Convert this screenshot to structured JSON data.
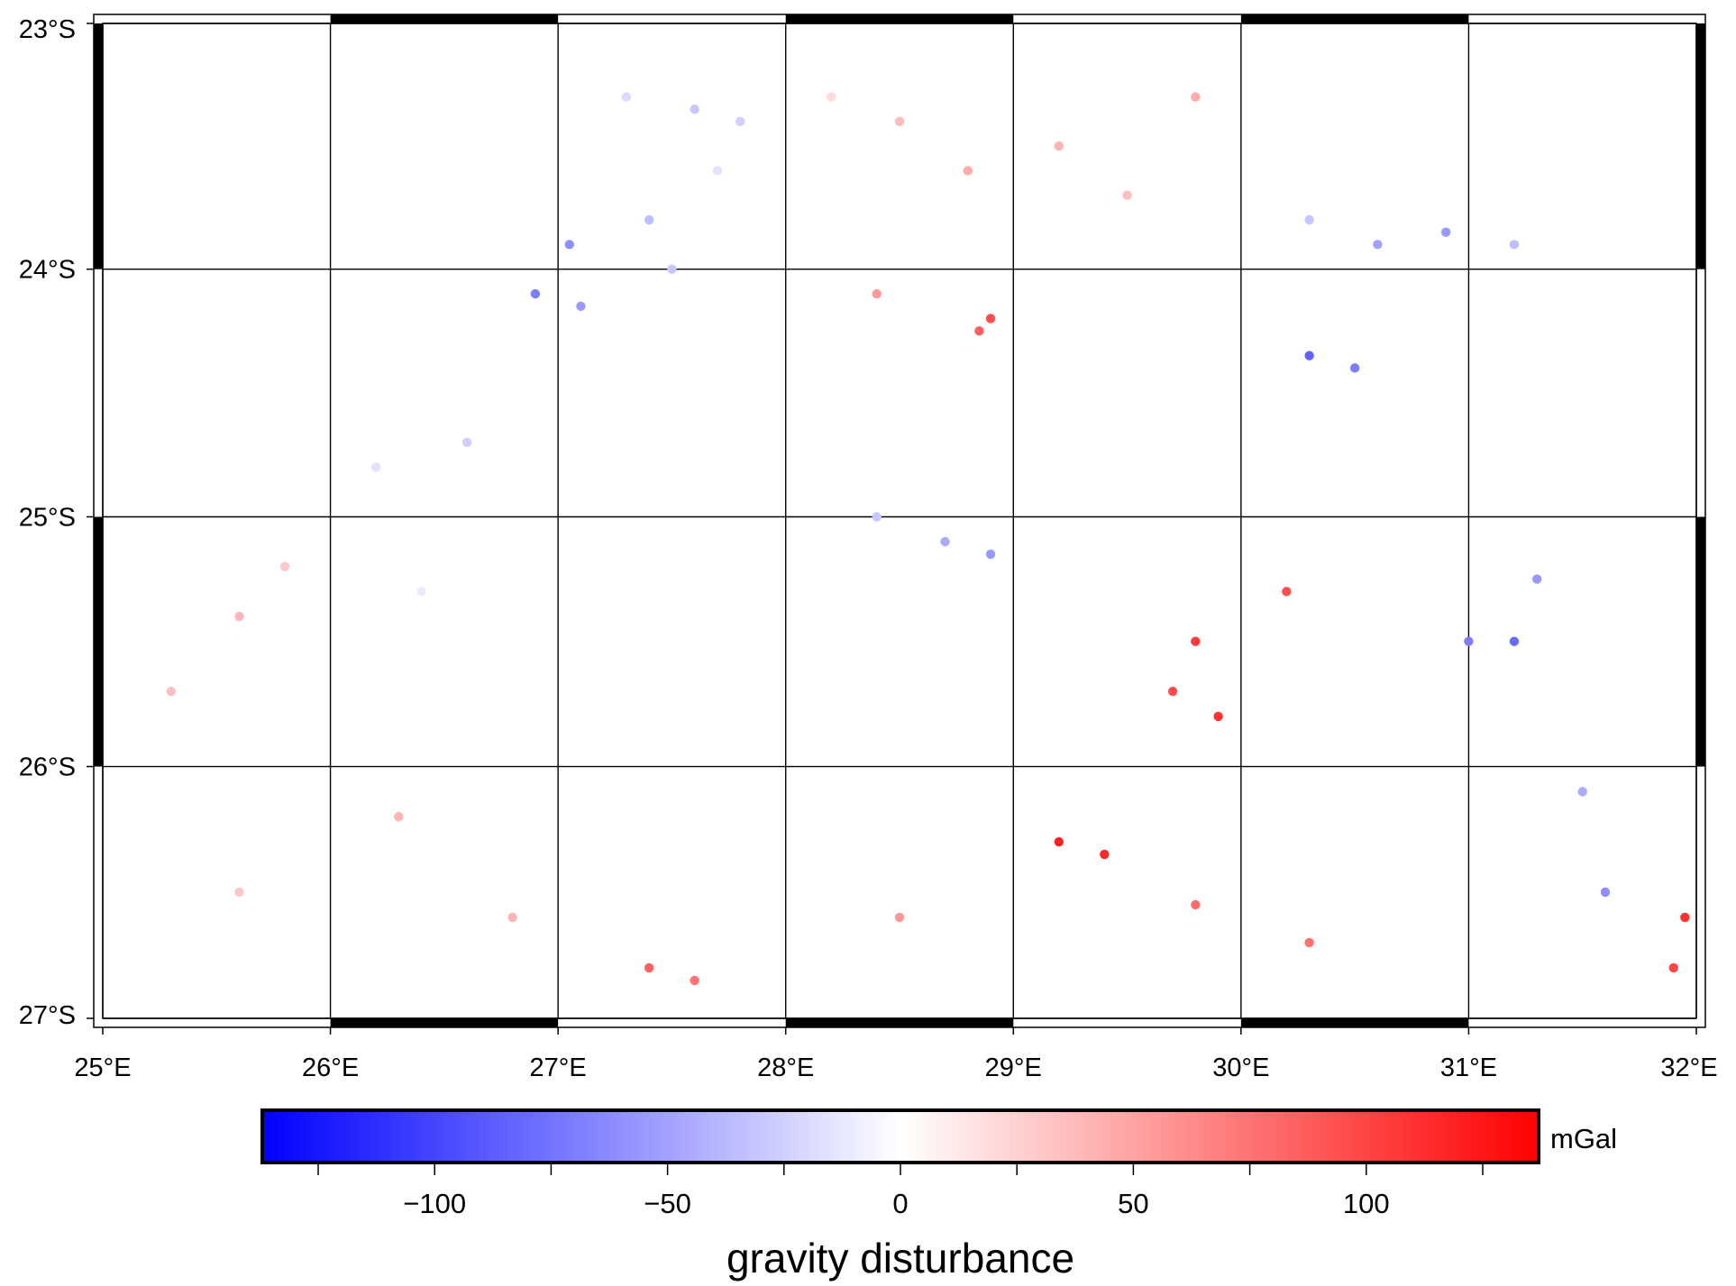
{
  "map": {
    "title": "",
    "projection": "mercator",
    "region": {
      "lon_min": 25,
      "lon_max": 32,
      "lat_min": -27,
      "lat_max": -23
    },
    "x_ticks": [
      {
        "value": 25,
        "label": "25°E"
      },
      {
        "value": 26,
        "label": "26°E"
      },
      {
        "value": 27,
        "label": "27°E"
      },
      {
        "value": 28,
        "label": "28°E"
      },
      {
        "value": 29,
        "label": "29°E"
      },
      {
        "value": 30,
        "label": "30°E"
      },
      {
        "value": 31,
        "label": "31°E"
      },
      {
        "value": 32,
        "label": "32°E"
      }
    ],
    "y_ticks": [
      {
        "value": -23,
        "label": "23°S"
      },
      {
        "value": -24,
        "label": "24°S"
      },
      {
        "value": -25,
        "label": "25°S"
      },
      {
        "value": -26,
        "label": "26°S"
      },
      {
        "value": -27,
        "label": "27°S"
      }
    ],
    "gridlines": true,
    "frame_style": "fancy"
  },
  "colorbar": {
    "label": "gravity disturbance",
    "unit": "mGal",
    "range": [
      -137,
      137
    ],
    "colormap": "polar",
    "color_low": "#0000ff",
    "color_mid": "#ffffff",
    "color_high": "#ff0000",
    "ticks": [
      {
        "value": -100,
        "label": "−100"
      },
      {
        "value": -50,
        "label": "−50"
      },
      {
        "value": 0,
        "label": "0"
      },
      {
        "value": 50,
        "label": "50"
      },
      {
        "value": 100,
        "label": "100"
      }
    ],
    "minor_ticks": [
      -125,
      -75,
      -25,
      25,
      75,
      125
    ]
  },
  "chart_data": {
    "type": "scatter",
    "value_field": "gravity disturbance (mGal)",
    "points": [
      {
        "lon": 27.3,
        "lat": -23.3,
        "v": -20
      },
      {
        "lon": 27.6,
        "lat": -23.35,
        "v": -30
      },
      {
        "lon": 27.8,
        "lat": -23.4,
        "v": -25
      },
      {
        "lon": 27.05,
        "lat": -23.9,
        "v": -60
      },
      {
        "lon": 26.9,
        "lat": -24.1,
        "v": -70
      },
      {
        "lon": 27.1,
        "lat": -24.15,
        "v": -55
      },
      {
        "lon": 27.4,
        "lat": -23.8,
        "v": -35
      },
      {
        "lon": 27.5,
        "lat": -24.0,
        "v": -30
      },
      {
        "lon": 27.7,
        "lat": -23.6,
        "v": -15
      },
      {
        "lon": 28.2,
        "lat": -23.3,
        "v": 20
      },
      {
        "lon": 28.5,
        "lat": -23.4,
        "v": 35
      },
      {
        "lon": 28.8,
        "lat": -23.6,
        "v": 45
      },
      {
        "lon": 29.2,
        "lat": -23.5,
        "v": 40
      },
      {
        "lon": 29.5,
        "lat": -23.7,
        "v": 35
      },
      {
        "lon": 29.8,
        "lat": -23.3,
        "v": 45
      },
      {
        "lon": 28.9,
        "lat": -24.2,
        "v": 95
      },
      {
        "lon": 28.85,
        "lat": -24.25,
        "v": 85
      },
      {
        "lon": 28.4,
        "lat": -24.1,
        "v": 55
      },
      {
        "lon": 30.3,
        "lat": -23.8,
        "v": -30
      },
      {
        "lon": 30.6,
        "lat": -23.9,
        "v": -50
      },
      {
        "lon": 30.9,
        "lat": -23.85,
        "v": -55
      },
      {
        "lon": 31.2,
        "lat": -23.9,
        "v": -35
      },
      {
        "lon": 30.5,
        "lat": -24.4,
        "v": -70
      },
      {
        "lon": 30.3,
        "lat": -24.35,
        "v": -85
      },
      {
        "lon": 26.6,
        "lat": -24.7,
        "v": -25
      },
      {
        "lon": 26.2,
        "lat": -24.8,
        "v": -15
      },
      {
        "lon": 25.8,
        "lat": -25.2,
        "v": 30
      },
      {
        "lon": 25.6,
        "lat": -25.4,
        "v": 40
      },
      {
        "lon": 25.3,
        "lat": -25.7,
        "v": 35
      },
      {
        "lon": 26.4,
        "lat": -25.3,
        "v": -10
      },
      {
        "lon": 28.7,
        "lat": -25.1,
        "v": -45
      },
      {
        "lon": 28.9,
        "lat": -25.15,
        "v": -55
      },
      {
        "lon": 28.4,
        "lat": -25.0,
        "v": -30
      },
      {
        "lon": 29.8,
        "lat": -25.5,
        "v": 105
      },
      {
        "lon": 29.9,
        "lat": -25.8,
        "v": 110
      },
      {
        "lon": 29.7,
        "lat": -25.7,
        "v": 95
      },
      {
        "lon": 29.2,
        "lat": -26.3,
        "v": 120
      },
      {
        "lon": 29.4,
        "lat": -26.35,
        "v": 115
      },
      {
        "lon": 30.2,
        "lat": -25.3,
        "v": 95
      },
      {
        "lon": 31.0,
        "lat": -25.5,
        "v": -70
      },
      {
        "lon": 31.2,
        "lat": -25.5,
        "v": -80
      },
      {
        "lon": 31.3,
        "lat": -25.25,
        "v": -55
      },
      {
        "lon": 31.5,
        "lat": -26.1,
        "v": -45
      },
      {
        "lon": 31.6,
        "lat": -26.5,
        "v": -60
      },
      {
        "lon": 31.95,
        "lat": -26.6,
        "v": 110
      },
      {
        "lon": 31.9,
        "lat": -26.8,
        "v": 100
      },
      {
        "lon": 27.4,
        "lat": -26.8,
        "v": 85
      },
      {
        "lon": 27.6,
        "lat": -26.85,
        "v": 75
      },
      {
        "lon": 28.5,
        "lat": -26.6,
        "v": 55
      },
      {
        "lon": 29.8,
        "lat": -26.55,
        "v": 80
      },
      {
        "lon": 30.3,
        "lat": -26.7,
        "v": 75
      },
      {
        "lon": 26.3,
        "lat": -26.2,
        "v": 40
      },
      {
        "lon": 25.6,
        "lat": -26.5,
        "v": 30
      },
      {
        "lon": 26.8,
        "lat": -26.6,
        "v": 40
      }
    ]
  }
}
